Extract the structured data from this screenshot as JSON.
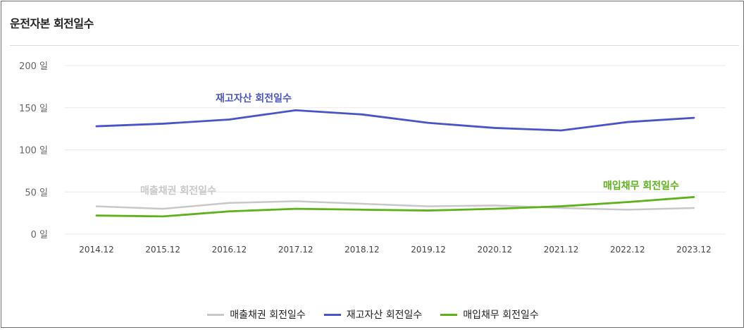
{
  "title": "운전자본 회전일수",
  "chart_data": {
    "type": "line",
    "categories": [
      "2014.12",
      "2015.12",
      "2016.12",
      "2017.12",
      "2018.12",
      "2019.12",
      "2020.12",
      "2021.12",
      "2022.12",
      "2023.12"
    ],
    "ylim": [
      0,
      200
    ],
    "yticks": [
      0,
      50,
      100,
      150,
      200
    ],
    "ytick_labels": [
      "0 일",
      "50 일",
      "100 일",
      "150 일",
      "200 일"
    ],
    "grid": true,
    "legend_position": "bottom",
    "series": [
      {
        "name": "매출채권 회전일수",
        "color": "#c8c8c8",
        "values": [
          33,
          30,
          37,
          39,
          36,
          33,
          34,
          31,
          29,
          31
        ]
      },
      {
        "name": "재고자산 회전일수",
        "color": "#4a54c9",
        "values": [
          128,
          131,
          136,
          147,
          142,
          132,
          126,
          123,
          133,
          138
        ]
      },
      {
        "name": "매입채무 회전일수",
        "color": "#5db21a",
        "values": [
          22,
          21,
          27,
          30,
          29,
          28,
          30,
          33,
          38,
          44
        ]
      }
    ],
    "annotations": [
      {
        "text": "매출채권 회전일수",
        "series": 0
      },
      {
        "text": "재고자산 회전일수",
        "series": 1
      },
      {
        "text": "매입채무 회전일수",
        "series": 2
      }
    ]
  }
}
